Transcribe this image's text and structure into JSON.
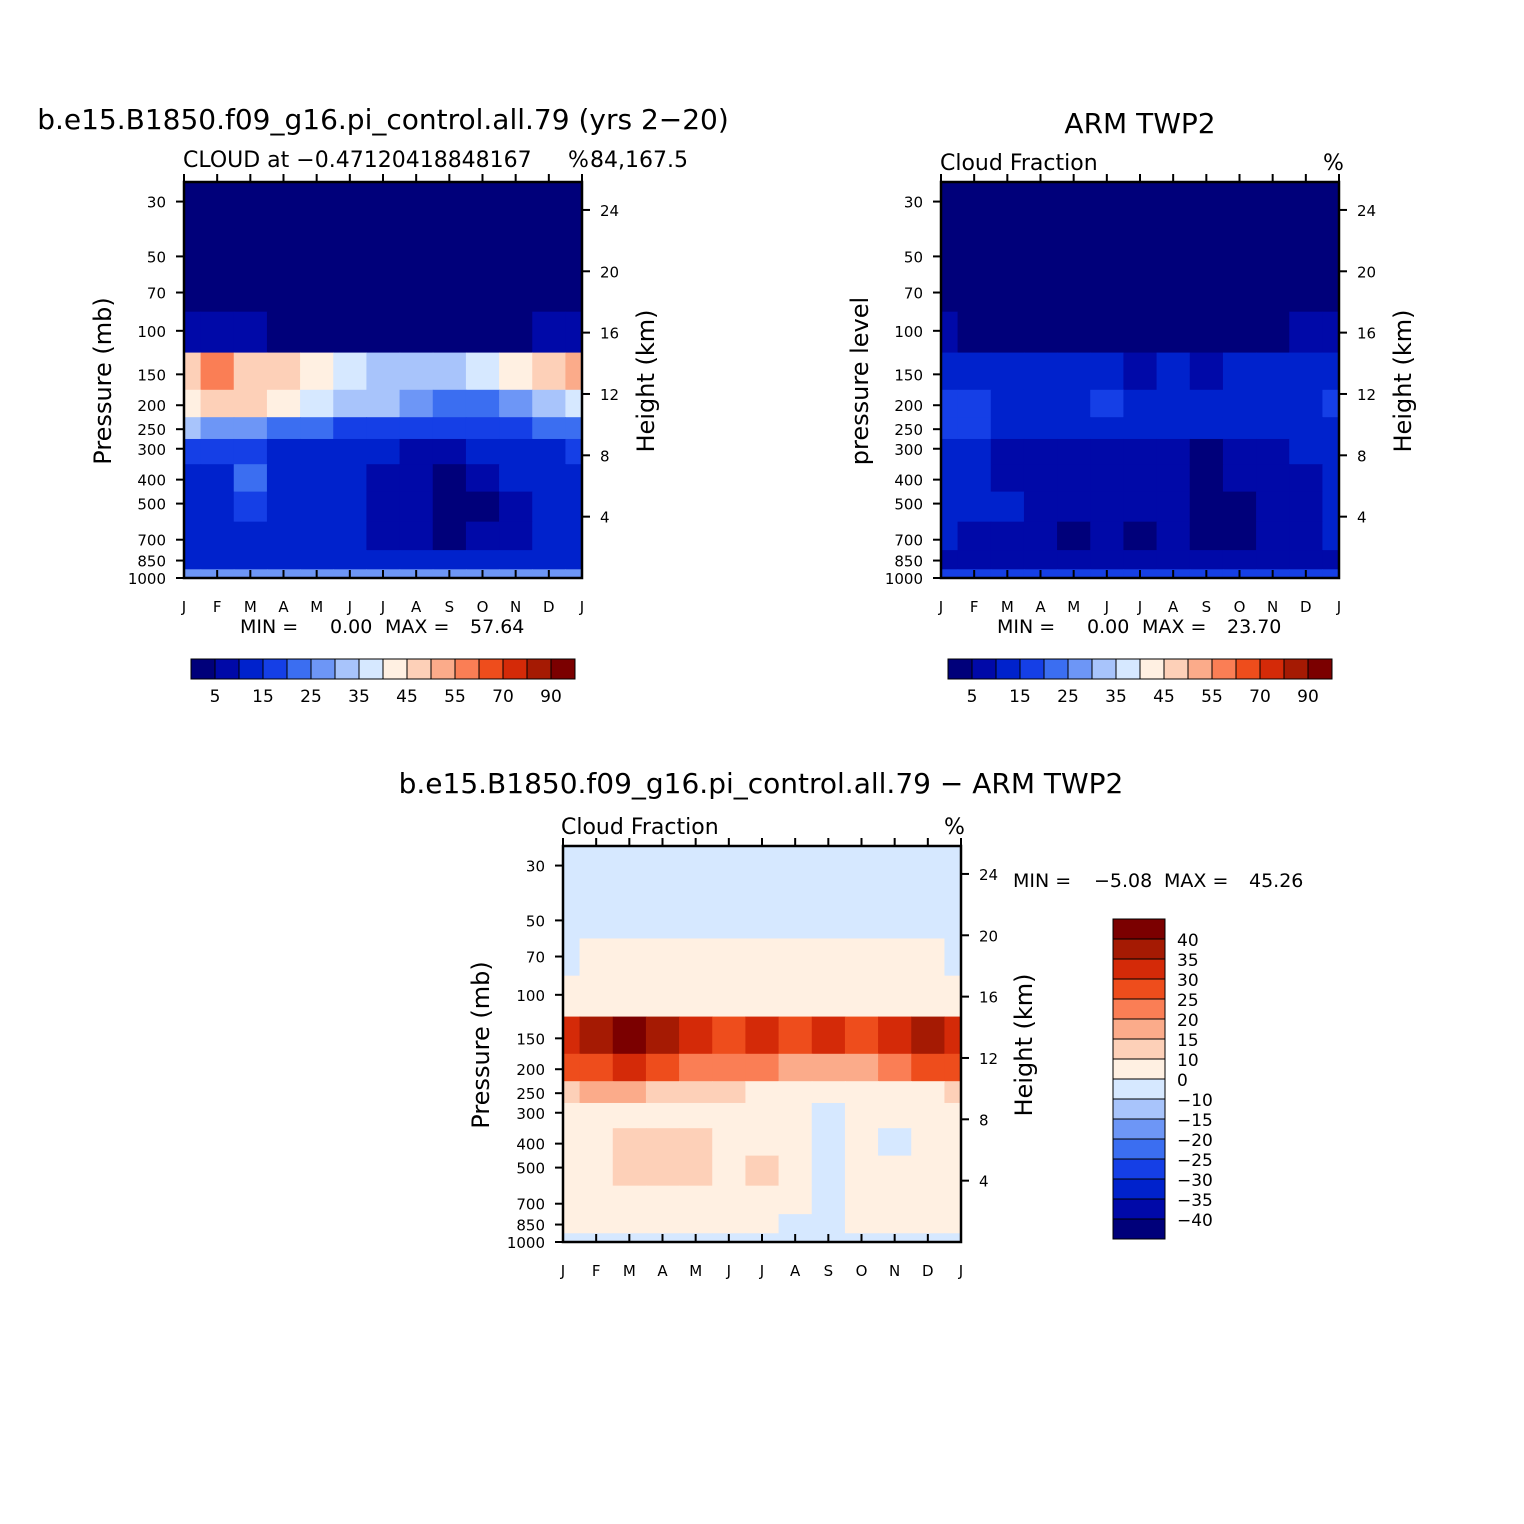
{
  "months": [
    "J",
    "F",
    "M",
    "A",
    "M",
    "J",
    "J",
    "A",
    "S",
    "O",
    "N",
    "D",
    "J"
  ],
  "pressure_ticks": [
    30,
    50,
    70,
    100,
    150,
    200,
    250,
    300,
    400,
    500,
    700,
    850,
    1000
  ],
  "height_ticks": [
    24,
    20,
    16,
    12,
    8,
    4
  ],
  "colors": {
    "seq": [
      "#00007a",
      "#0009a8",
      "#0022cc",
      "#153fe6",
      "#3b6ef1",
      "#6d96f6",
      "#a8c4fb",
      "#d6e8ff",
      "#fff0e2",
      "#fdd0b8",
      "#fbab8a",
      "#fa7e55",
      "#ee4d1c",
      "#d42a08",
      "#a51a03",
      "#7b0000"
    ],
    "diff": [
      "#00007a",
      "#0009a8",
      "#0022cc",
      "#153fe6",
      "#3b6ef1",
      "#6d96f6",
      "#a8c4fb",
      "#d6e8ff",
      "#fff0e2",
      "#fdd0b8",
      "#fbab8a",
      "#fa7e55",
      "#ee4d1c",
      "#d42a08",
      "#a51a03",
      "#7b0000"
    ]
  },
  "panels": {
    "model": {
      "title": "b.e15.B1850.f09_g16.pi_control.all.79 (yrs 2−20)",
      "subtitle_left": "CLOUD at −0.47120418848167",
      "subtitle_right": "84,167.5",
      "unit": "%",
      "ylabel": "Pressure (mb)",
      "y2label": "Height (km)",
      "stats_min_label": "MIN =",
      "stats_min": "0.00",
      "stats_max_label": "MAX =",
      "stats_max": "57.64"
    },
    "obs": {
      "title": "ARM TWP2",
      "subtitle_left": "Cloud Fraction",
      "unit": "%",
      "ylabel": "pressure level",
      "y2label": "Height (km)",
      "stats_min_label": "MIN =",
      "stats_min": "0.00",
      "stats_max_label": "MAX =",
      "stats_max": "23.70"
    },
    "diff": {
      "title": "b.e15.B1850.f09_g16.pi_control.all.79 − ARM TWP2",
      "subtitle_left": "Cloud Fraction",
      "unit": "%",
      "ylabel": "Pressure (mb)",
      "y2label": "Height (km)",
      "stats_min_label": "MIN =",
      "stats_min": "−5.08",
      "stats_max_label": "MAX =",
      "stats_max": "45.26"
    }
  },
  "seq_colorbar_labels": [
    "5",
    "15",
    "25",
    "35",
    "45",
    "55",
    "70",
    "90"
  ],
  "diff_colorbar_labels": [
    "40",
    "35",
    "30",
    "25",
    "20",
    "15",
    "10",
    "0",
    "−10",
    "−15",
    "−20",
    "−25",
    "−30",
    "−35",
    "−40"
  ],
  "chart_data": [
    {
      "type": "heatmap",
      "title": "b.e15.B1850.f09_g16.pi_control.all.79 (yrs 2−20)",
      "subtitle": "CLOUD at −0.4712041884816784,167.5",
      "xlabel": "",
      "ylabel": "Pressure (mb)",
      "y2label": "Height (km)",
      "x": [
        "J",
        "F",
        "M",
        "A",
        "M",
        "J",
        "J",
        "A",
        "S",
        "O",
        "N",
        "D",
        "J"
      ],
      "y": [
        30,
        50,
        70,
        100,
        150,
        200,
        250,
        300,
        400,
        500,
        700,
        850,
        1000
      ],
      "y_scale": "log",
      "ylim": [
        1000,
        25
      ],
      "levels": [
        5,
        10,
        15,
        20,
        25,
        30,
        35,
        40,
        45,
        50,
        55,
        60,
        70,
        80,
        90
      ],
      "values": [
        [
          0,
          0,
          0,
          0,
          0,
          0,
          0,
          0,
          0,
          0,
          0,
          0,
          0
        ],
        [
          0,
          0,
          0,
          0,
          0,
          0,
          0,
          0,
          0,
          0,
          0,
          0,
          0
        ],
        [
          0,
          0,
          0,
          0,
          0,
          0,
          0,
          0,
          0,
          0,
          0,
          0,
          0
        ],
        [
          8,
          7,
          5,
          4,
          3,
          3,
          3,
          3,
          3,
          3,
          4,
          8,
          8
        ],
        [
          46,
          56,
          48,
          45,
          40,
          36,
          32,
          31,
          31,
          38,
          43,
          48,
          50
        ],
        [
          43,
          48,
          45,
          42,
          38,
          34,
          30,
          25,
          23,
          22,
          27,
          34,
          38
        ],
        [
          30,
          28,
          26,
          24,
          21,
          19,
          17,
          16,
          16,
          17,
          18,
          22,
          24
        ],
        [
          15,
          15,
          16,
          14,
          12,
          11,
          10,
          9,
          8,
          10,
          12,
          14,
          15
        ],
        [
          14,
          14,
          22,
          12,
          11,
          10,
          8,
          5,
          4,
          5,
          10,
          13,
          14
        ],
        [
          14,
          12,
          19,
          14,
          12,
          11,
          8,
          5,
          2,
          4,
          9,
          12,
          14
        ],
        [
          13,
          12,
          11,
          11,
          11,
          10,
          8,
          6,
          3,
          6,
          9,
          11,
          13
        ],
        [
          14,
          13,
          13,
          13,
          13,
          12,
          11,
          11,
          10,
          11,
          12,
          13,
          14
        ],
        [
          25,
          25,
          25,
          25,
          25,
          25,
          25,
          25,
          25,
          25,
          25,
          25,
          25
        ]
      ],
      "colorbar": [
        "5",
        "15",
        "25",
        "35",
        "45",
        "55",
        "70",
        "90"
      ],
      "min": 0.0,
      "max": 57.64,
      "unit": "%"
    },
    {
      "type": "heatmap",
      "title": "ARM TWP2",
      "subtitle": "Cloud Fraction",
      "xlabel": "",
      "ylabel": "pressure level",
      "y2label": "Height (km)",
      "x": [
        "J",
        "F",
        "M",
        "A",
        "M",
        "J",
        "J",
        "A",
        "S",
        "O",
        "N",
        "D",
        "J"
      ],
      "y": [
        30,
        50,
        70,
        100,
        150,
        200,
        250,
        300,
        400,
        500,
        700,
        850,
        1000
      ],
      "y_scale": "log",
      "ylim": [
        1000,
        25
      ],
      "levels": [
        5,
        10,
        15,
        20,
        25,
        30,
        35,
        40,
        45,
        50,
        55,
        60,
        70,
        80,
        90
      ],
      "values": [
        [
          0,
          0,
          0,
          0,
          0,
          0,
          0,
          0,
          0,
          0,
          0,
          0,
          0
        ],
        [
          0,
          0,
          0,
          0,
          0,
          0,
          0,
          0,
          0,
          0,
          0,
          0,
          0
        ],
        [
          0,
          0,
          0,
          0,
          0,
          0,
          0,
          0,
          0,
          0,
          0,
          0,
          0
        ],
        [
          6,
          4,
          3,
          2,
          2,
          2,
          2,
          2,
          2,
          2,
          3,
          5,
          6
        ],
        [
          13,
          12,
          12,
          11,
          11,
          10,
          9,
          10,
          9,
          11,
          12,
          13,
          13
        ],
        [
          19,
          17,
          14,
          12,
          14,
          17,
          13,
          12,
          13,
          12,
          13,
          14,
          15
        ],
        [
          18,
          16,
          13,
          11,
          12,
          13,
          12,
          11,
          10,
          11,
          12,
          13,
          14
        ],
        [
          13,
          13,
          9,
          8,
          7,
          7,
          7,
          7,
          4,
          7,
          9,
          10,
          13
        ],
        [
          13,
          13,
          9,
          6,
          6,
          6,
          6,
          6,
          3,
          6,
          7,
          8,
          12
        ],
        [
          13,
          13,
          10,
          6,
          6,
          6,
          6,
          6,
          2,
          4,
          7,
          8,
          12
        ],
        [
          10,
          9,
          7,
          7,
          4,
          6,
          4,
          6,
          2,
          3,
          6,
          7,
          10
        ],
        [
          8,
          8,
          7,
          6,
          6,
          6,
          6,
          6,
          6,
          6,
          6,
          7,
          8
        ],
        [
          15,
          15,
          15,
          15,
          15,
          15,
          15,
          15,
          15,
          15,
          15,
          15,
          15
        ]
      ],
      "colorbar": [
        "5",
        "15",
        "25",
        "35",
        "45",
        "55",
        "70",
        "90"
      ],
      "min": 0.0,
      "max": 23.7,
      "unit": "%"
    },
    {
      "type": "heatmap",
      "title": "b.e15.B1850.f09_g16.pi_control.all.79 − ARM TWP2",
      "subtitle": "Cloud Fraction",
      "xlabel": "",
      "ylabel": "Pressure (mb)",
      "y2label": "Height (km)",
      "x": [
        "J",
        "F",
        "M",
        "A",
        "M",
        "J",
        "J",
        "A",
        "S",
        "O",
        "N",
        "D",
        "J"
      ],
      "y": [
        30,
        50,
        70,
        100,
        150,
        200,
        250,
        300,
        400,
        500,
        700,
        850,
        1000
      ],
      "y_scale": "log",
      "ylim": [
        1000,
        25
      ],
      "levels": [
        -40,
        -35,
        -30,
        -25,
        -20,
        -15,
        -10,
        0,
        10,
        15,
        20,
        25,
        30,
        35,
        40
      ],
      "values": [
        [
          -1,
          -1,
          -1,
          -1,
          -1,
          -1,
          -1,
          -1,
          -1,
          -1,
          -1,
          -1,
          -1
        ],
        [
          -1,
          -1,
          -1,
          -1,
          -1,
          -1,
          -1,
          -1,
          -1,
          -1,
          -1,
          -1,
          -1
        ],
        [
          -1,
          3,
          1,
          1,
          1,
          1,
          1,
          1,
          1,
          1,
          1,
          1,
          -1
        ],
        [
          3,
          4,
          3,
          3,
          3,
          3,
          3,
          3,
          3,
          3,
          3,
          3,
          3
        ],
        [
          33,
          38,
          44,
          36,
          33,
          28,
          32,
          27,
          30,
          28,
          32,
          37,
          34
        ],
        [
          25,
          27,
          30,
          28,
          24,
          22,
          20,
          17,
          15,
          18,
          22,
          25,
          25
        ],
        [
          14,
          15,
          17,
          14,
          12,
          10,
          8,
          6,
          5,
          6,
          7,
          9,
          10
        ],
        [
          5,
          6,
          7,
          6,
          5,
          4,
          3,
          1,
          -2,
          3,
          3,
          4,
          4
        ],
        [
          2,
          4,
          11,
          13,
          12,
          7,
          4,
          3,
          -3,
          2,
          -2,
          4,
          3
        ],
        [
          2,
          3,
          12,
          12,
          11,
          9,
          12,
          2,
          -4,
          2,
          3,
          4,
          3
        ],
        [
          3,
          4,
          4,
          4,
          4,
          4,
          4,
          1,
          -3,
          3,
          3,
          3,
          3
        ],
        [
          1,
          2,
          2,
          2,
          2,
          2,
          2,
          -1,
          -1,
          2,
          2,
          2,
          1
        ],
        [
          -2,
          -2,
          -2,
          -2,
          -2,
          -2,
          -2,
          -2,
          -2,
          -2,
          -2,
          -2,
          -2
        ]
      ],
      "colorbar": [
        "40",
        "35",
        "30",
        "25",
        "20",
        "15",
        "10",
        "0",
        "−10",
        "−15",
        "−20",
        "−25",
        "−30",
        "−35",
        "−40"
      ],
      "min": -5.08,
      "max": 45.26,
      "unit": "%"
    }
  ]
}
